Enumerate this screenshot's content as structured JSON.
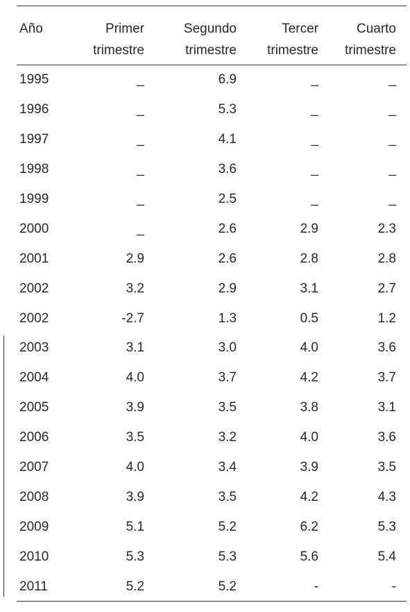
{
  "table": {
    "header": [
      [
        "Año"
      ],
      [
        "Primer",
        "trimestre"
      ],
      [
        "Segundo",
        "trimestre"
      ],
      [
        "Tercer",
        "trimestre"
      ],
      [
        "Cuarto",
        "trimestre"
      ]
    ],
    "rows": [
      [
        "1995",
        "_",
        "6.9",
        "_",
        "_"
      ],
      [
        "1996",
        "_",
        "5.3",
        "_",
        "_"
      ],
      [
        "1997",
        "_",
        "4.1",
        "_",
        "_"
      ],
      [
        "1998",
        "_",
        "3.6",
        "_",
        "_"
      ],
      [
        "1999",
        "_",
        "2.5",
        "_",
        "_"
      ],
      [
        "2000",
        "_",
        "2.6",
        "2.9",
        "2.3"
      ],
      [
        "2001",
        "2.9",
        "2.6",
        "2.8",
        "2.8"
      ],
      [
        "2002",
        "3.2",
        "2.9",
        "3.1",
        "2.7"
      ],
      [
        "2002",
        "-2.7",
        "1.3",
        "0.5",
        "1.2"
      ],
      [
        "2003",
        "3.1",
        "3.0",
        "4.0",
        "3.6"
      ],
      [
        "2004",
        "4.0",
        "3.7",
        "4.2",
        "3.7"
      ],
      [
        "2005",
        "3.9",
        "3.5",
        "3.8",
        "3.1"
      ],
      [
        "2006",
        "3.5",
        "3.2",
        "4.0",
        "3.6"
      ],
      [
        "2007",
        "4.0",
        "3.4",
        "3.9",
        "3.5"
      ],
      [
        "2008",
        "3.9",
        "3.5",
        "4.2",
        "4.3"
      ],
      [
        "2009",
        "5.1",
        "5.2",
        "6.2",
        "5.3"
      ],
      [
        "2010",
        "5.3",
        "5.3",
        "5.6",
        "5.4"
      ],
      [
        "2011",
        "5.2",
        "5.2",
        "-",
        "-"
      ]
    ]
  }
}
